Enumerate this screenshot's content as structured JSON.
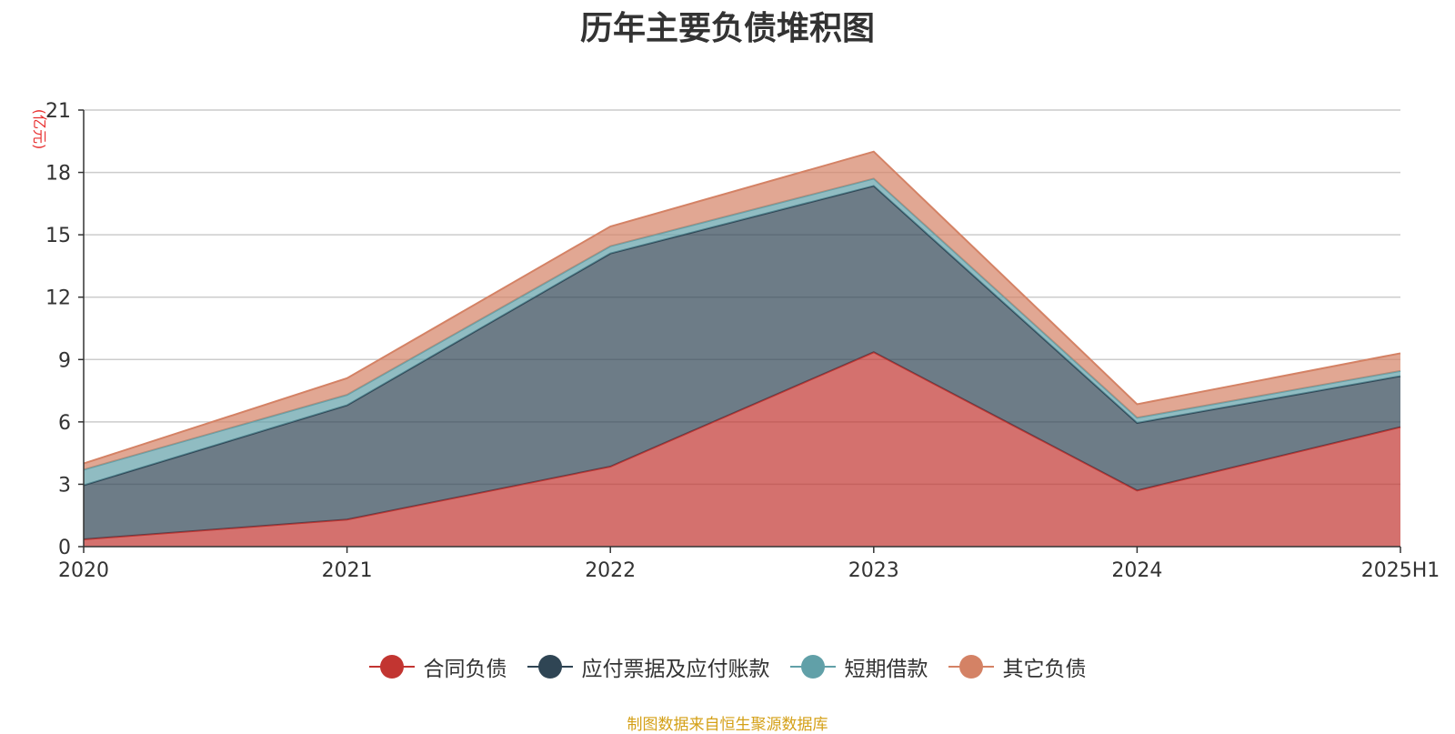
{
  "title": "历年主要负债堆积图",
  "footer": "制图数据来自恒生聚源数据库",
  "chart_data": {
    "type": "area",
    "stacked": true,
    "title": "历年主要负债堆积图",
    "ylabel": "(亿元)",
    "xlabel": "",
    "categories": [
      "2020",
      "2021",
      "2022",
      "2023",
      "2024",
      "2025H1"
    ],
    "ylim": [
      0,
      21
    ],
    "yticks": [
      0,
      3,
      6,
      9,
      12,
      15,
      18,
      21
    ],
    "grid": true,
    "legend_position": "bottom",
    "series": [
      {
        "name": "合同负债",
        "color": "#c23531",
        "values": [
          0.35,
          1.3,
          3.85,
          9.35,
          2.7,
          5.75
        ]
      },
      {
        "name": "应付票据及应付账款",
        "color": "#2f4554",
        "values": [
          2.6,
          5.5,
          10.25,
          8.0,
          3.25,
          2.45
        ]
      },
      {
        "name": "短期借款",
        "color": "#61a0a8",
        "values": [
          0.75,
          0.5,
          0.35,
          0.35,
          0.25,
          0.25
        ]
      },
      {
        "name": "其它负债",
        "color": "#d48265",
        "values": [
          0.3,
          0.8,
          0.95,
          1.3,
          0.65,
          0.85
        ]
      }
    ]
  }
}
